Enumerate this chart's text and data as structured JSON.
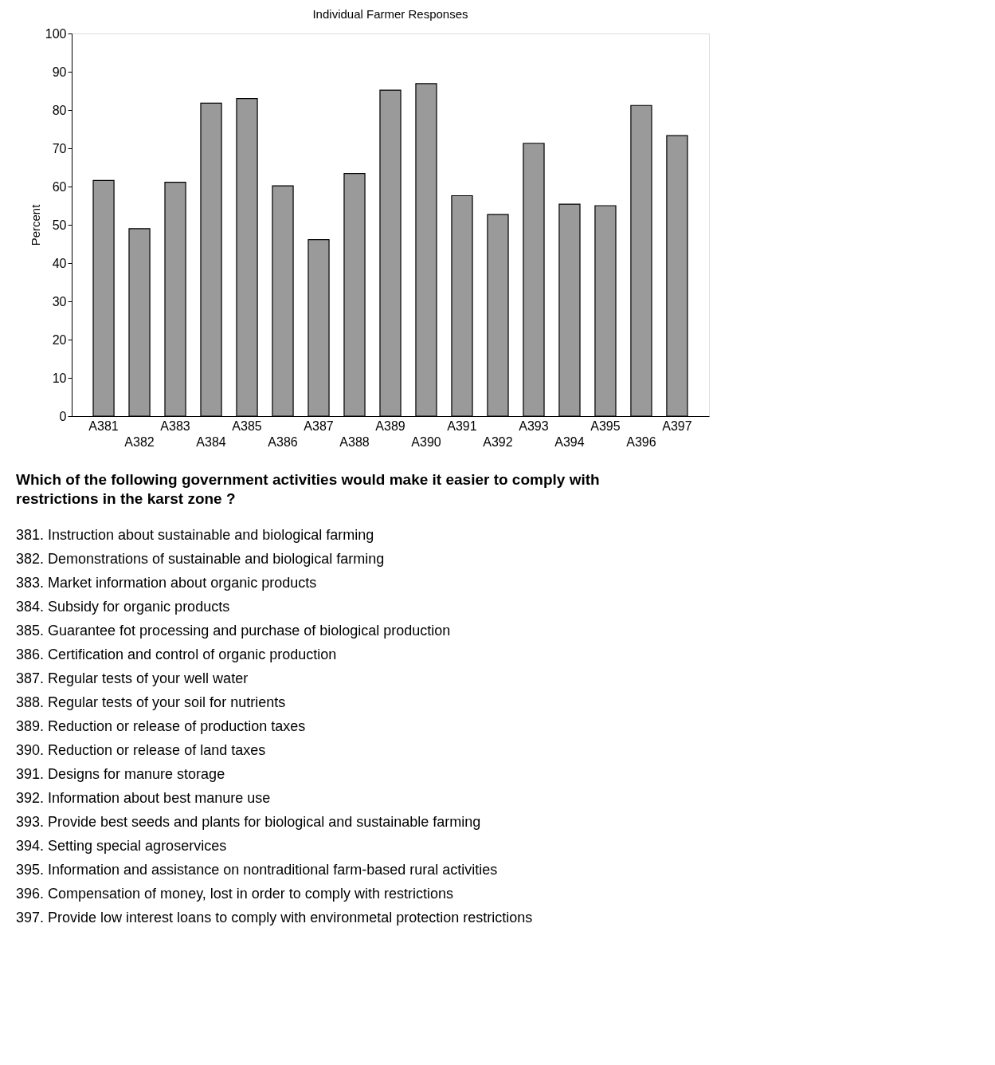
{
  "chart_data": {
    "type": "bar",
    "title": "Individual Farmer Responses",
    "ylabel": "Percent",
    "categories": [
      "A381",
      "A382",
      "A383",
      "A384",
      "A385",
      "A386",
      "A387",
      "A388",
      "A389",
      "A390",
      "A391",
      "A392",
      "A393",
      "A394",
      "A395",
      "A396",
      "A397"
    ],
    "values": [
      61.6,
      49.0,
      61.1,
      81.8,
      83.0,
      60.2,
      46.1,
      63.4,
      85.2,
      86.9,
      57.6,
      52.7,
      71.3,
      55.4,
      55.0,
      81.2,
      73.3
    ],
    "color": "#9a9a9a",
    "ylim": [
      0,
      100
    ],
    "yticks": [
      0,
      10,
      20,
      30,
      40,
      50,
      60,
      70,
      80,
      90,
      100
    ],
    "grid": false,
    "annotations": [
      "Which of the following government activities would make it easier to comply with restrictions in the karst zone ?",
      "381. Instruction about sustainable and biological farming",
      "382. Demonstrations of sustainable and biological farming",
      "383. Market information about organic products",
      "384. Subsidy for organic products",
      "385. Guarantee fot processing and purchase of biological production",
      "386. Certification and control of  organic production",
      "387. Regular tests of your well water",
      "388. Regular tests of your soil for nutrients",
      "389. Reduction or release of production taxes",
      "390. Reduction or release of land taxes",
      "391. Designs for manure storage",
      "392. Information about best manure use",
      "393. Provide best seeds and plants for biological and sustainable farming",
      "394. Setting special agroservices",
      "395. Information and assistance on nontraditional farm-based rural activities",
      "396. Compensation of  money, lost in order to comply with restrictions",
      "397. Provide low interest loans to comply with environmetal protection restrictions"
    ]
  }
}
